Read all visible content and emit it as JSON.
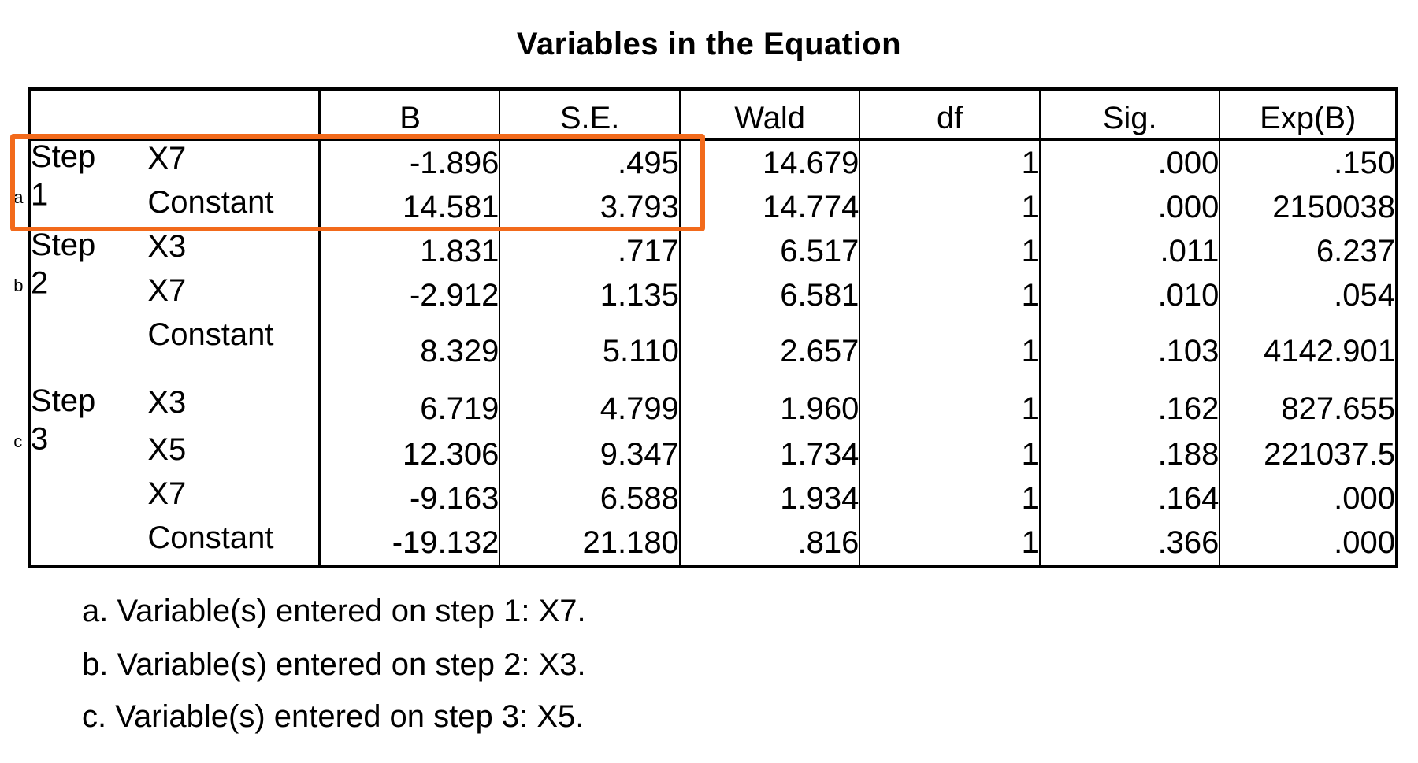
{
  "title": "Variables in the Equation",
  "columns": [
    "B",
    "S.E.",
    "Wald",
    "df",
    "Sig.",
    "Exp(B)"
  ],
  "steps": [
    {
      "label": "Step",
      "number": "1",
      "footnote_mark": "a",
      "rows": [
        {
          "variable": "X7",
          "B": "-1.896",
          "SE": ".495",
          "Wald": "14.679",
          "df": "1",
          "Sig": ".000",
          "ExpB": ".150"
        },
        {
          "variable": "Constant",
          "B": "14.581",
          "SE": "3.793",
          "Wald": "14.774",
          "df": "1",
          "Sig": ".000",
          "ExpB": "2150038"
        }
      ]
    },
    {
      "label": "Step",
      "number": "2",
      "footnote_mark": "b",
      "rows": [
        {
          "variable": "X3",
          "B": "1.831",
          "SE": ".717",
          "Wald": "6.517",
          "df": "1",
          "Sig": ".011",
          "ExpB": "6.237"
        },
        {
          "variable": "X7",
          "B": "-2.912",
          "SE": "1.135",
          "Wald": "6.581",
          "df": "1",
          "Sig": ".010",
          "ExpB": ".054"
        },
        {
          "variable": "Constant",
          "B": "8.329",
          "SE": "5.110",
          "Wald": "2.657",
          "df": "1",
          "Sig": ".103",
          "ExpB": "4142.901"
        }
      ]
    },
    {
      "label": "Step",
      "number": "3",
      "footnote_mark": "c",
      "rows": [
        {
          "variable": "X3",
          "B": "6.719",
          "SE": "4.799",
          "Wald": "1.960",
          "df": "1",
          "Sig": ".162",
          "ExpB": "827.655"
        },
        {
          "variable": "X5",
          "B": "12.306",
          "SE": "9.347",
          "Wald": "1.734",
          "df": "1",
          "Sig": ".188",
          "ExpB": "221037.5"
        },
        {
          "variable": "X7",
          "B": "-9.163",
          "SE": "6.588",
          "Wald": "1.934",
          "df": "1",
          "Sig": ".164",
          "ExpB": ".000"
        },
        {
          "variable": "Constant",
          "B": "-19.132",
          "SE": "21.180",
          "Wald": ".816",
          "df": "1",
          "Sig": ".366",
          "ExpB": ".000"
        }
      ]
    }
  ],
  "footnotes": [
    "a. Variable(s) entered on step 1: X7.",
    "b. Variable(s) entered on step 2: X3.",
    "c. Variable(s) entered on step 3: X5."
  ],
  "highlight_color": "#f26a1b"
}
